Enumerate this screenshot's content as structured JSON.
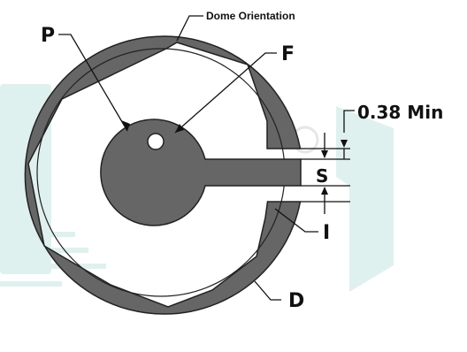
{
  "diagram": {
    "labels": {
      "dome_orientation": "Dome Orientation",
      "p": "P",
      "f": "F",
      "s": "S",
      "i": "I",
      "d": "D",
      "min_dimension": "0.38 Min"
    },
    "colors": {
      "pad_fill": "#666666",
      "outline": "#222222",
      "watermark": "#dff1ee",
      "background": "#ffffff"
    }
  }
}
